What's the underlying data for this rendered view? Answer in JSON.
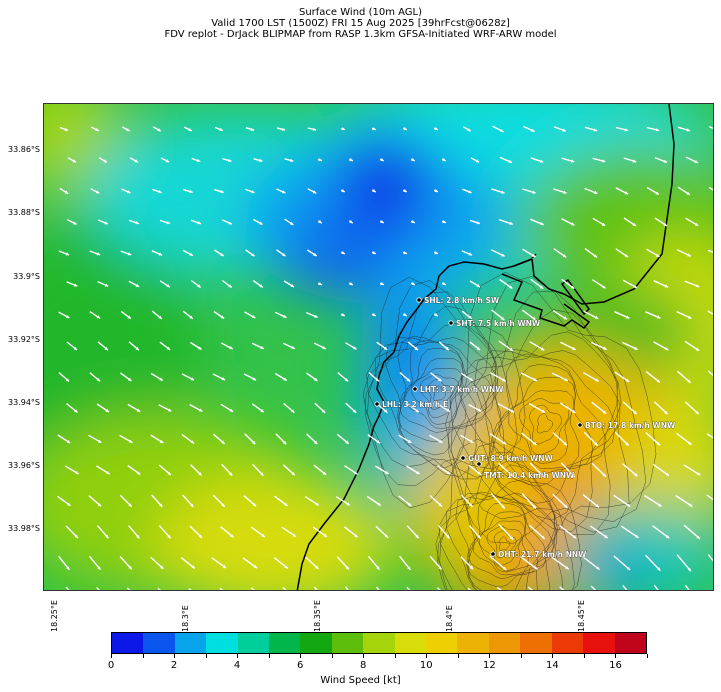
{
  "title": {
    "line1": "Surface Wind (10m AGL)",
    "line2": "Valid 1700 LST (1500Z) FRI 15 Aug 2025 [39hrFcst@0628z]",
    "line3": "FDV replot - DrJack BLIPMAP from RASP 1.3km GFSA-Initiated WRF-ARW model"
  },
  "map": {
    "lat_labels": [
      "33.86°S",
      "33.88°S",
      "33.9°S",
      "33.92°S",
      "33.94°S",
      "33.96°S",
      "33.98°S"
    ],
    "lon_labels": [
      "18.25°E",
      "18.3°E",
      "18.35°E",
      "18.4°E",
      "18.45°E"
    ],
    "stations": [
      {
        "code": "SHL",
        "label": "SHL: 2.8 km/h SW"
      },
      {
        "code": "SHT",
        "label": "SHT: 7.5 km/h WNW"
      },
      {
        "code": "LHT",
        "label": "LHT: 3.7 km/h WNW"
      },
      {
        "code": "LHL",
        "label": "LHL: 3.2 km/h E"
      },
      {
        "code": "BTO",
        "label": "BTO: 17.8 km/h WNW"
      },
      {
        "code": "GUT",
        "label": "GUT: 8.9 km/h WNW"
      },
      {
        "code": "TMT",
        "label": "TMT: 10.4 km/h WNW"
      },
      {
        "code": "OHT",
        "label": "OHT: 21.7 km/h NNW"
      }
    ]
  },
  "colorbar": {
    "label": "Wind Speed [kt]",
    "ticks": [
      "0",
      "2",
      "4",
      "6",
      "8",
      "10",
      "12",
      "14",
      "16"
    ],
    "colors": [
      "#0b18e8",
      "#0a55ee",
      "#07a4ec",
      "#00dfe0",
      "#00cf9c",
      "#00b54a",
      "#13a812",
      "#5cbe0a",
      "#a6d40a",
      "#d8dc08",
      "#ecd004",
      "#ecb204",
      "#ee9704",
      "#ee6f04",
      "#ec3a06",
      "#e8100c",
      "#c0041c"
    ]
  }
}
